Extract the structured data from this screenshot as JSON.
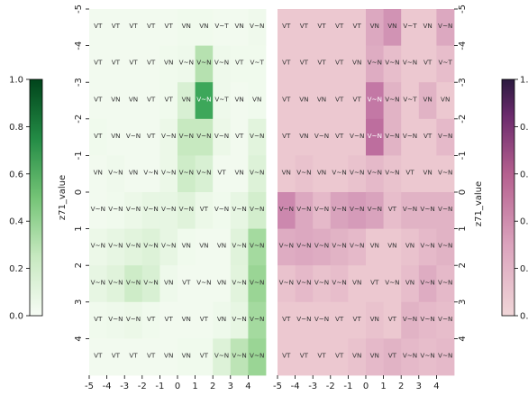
{
  "chart_data": [
    {
      "type": "heatmap",
      "panel": "left",
      "colormap": "Greens",
      "colorbar": {
        "label": "z71_value",
        "ticks": [
          "0.0",
          "0.2",
          "0.4",
          "0.6",
          "0.8",
          "1.0"
        ],
        "range": [
          0,
          1
        ],
        "position": "left"
      },
      "x_ticks": [
        "-5",
        "-4",
        "-3",
        "-2",
        "-1",
        "0",
        "1",
        "2",
        "3",
        "4"
      ],
      "y_ticks": [
        "-5",
        "-4",
        "-3",
        "-2",
        "-1",
        "0",
        "1",
        "2",
        "3",
        "4"
      ],
      "y_axis_side": "left",
      "rows": 10,
      "cols": 10,
      "cell_labels": [
        [
          "VT",
          "VT",
          "VT",
          "VT",
          "VT",
          "VN",
          "VN",
          "V~T",
          "VN",
          "V~N"
        ],
        [
          "VT",
          "VT",
          "VT",
          "VT",
          "VN",
          "V~N",
          "V~N",
          "V~N",
          "VT",
          "V~T"
        ],
        [
          "VT",
          "VN",
          "VN",
          "VT",
          "VT",
          "VN",
          "V~N",
          "V~T",
          "VN",
          "VN"
        ],
        [
          "VT",
          "VN",
          "V~N",
          "VT",
          "V~N",
          "V~N",
          "V~N",
          "V~N",
          "VT",
          "V~N"
        ],
        [
          "VN",
          "V~N",
          "VN",
          "V~N",
          "V~N",
          "V~N",
          "V~N",
          "VT",
          "VN",
          "V~N"
        ],
        [
          "V~N",
          "V~N",
          "V~N",
          "V~N",
          "V~N",
          "V~N",
          "VT",
          "V~N",
          "V~N",
          "V~N"
        ],
        [
          "V~N",
          "V~N",
          "V~N",
          "V~N",
          "V~N",
          "VN",
          "VN",
          "VN",
          "V~N",
          "V~N"
        ],
        [
          "V~N",
          "V~N",
          "V~N",
          "V~N",
          "VN",
          "VT",
          "V~N",
          "VN",
          "V~N",
          "V~N"
        ],
        [
          "VT",
          "V~N",
          "V~N",
          "VT",
          "VT",
          "VN",
          "VT",
          "VN",
          "V~N",
          "V~N"
        ],
        [
          "VT",
          "VT",
          "VT",
          "VT",
          "VN",
          "VN",
          "VT",
          "V~N",
          "V~N",
          "V~N"
        ]
      ],
      "values": [
        [
          0.05,
          0.05,
          0.05,
          0.05,
          0.05,
          0.06,
          0.06,
          0.05,
          0.05,
          0.07
        ],
        [
          0.05,
          0.05,
          0.05,
          0.05,
          0.06,
          0.08,
          0.3,
          0.08,
          0.06,
          0.06
        ],
        [
          0.05,
          0.05,
          0.05,
          0.05,
          0.06,
          0.18,
          0.72,
          0.08,
          0.05,
          0.06
        ],
        [
          0.06,
          0.05,
          0.05,
          0.05,
          0.1,
          0.25,
          0.25,
          0.1,
          0.05,
          0.14
        ],
        [
          0.05,
          0.07,
          0.05,
          0.05,
          0.1,
          0.22,
          0.18,
          0.05,
          0.05,
          0.16
        ],
        [
          0.05,
          0.06,
          0.1,
          0.12,
          0.12,
          0.15,
          0.1,
          0.06,
          0.12,
          0.2
        ],
        [
          0.1,
          0.12,
          0.14,
          0.16,
          0.12,
          0.06,
          0.05,
          0.05,
          0.15,
          0.35
        ],
        [
          0.12,
          0.15,
          0.22,
          0.18,
          0.08,
          0.05,
          0.05,
          0.05,
          0.14,
          0.38
        ],
        [
          0.06,
          0.08,
          0.1,
          0.06,
          0.05,
          0.05,
          0.05,
          0.08,
          0.12,
          0.35
        ],
        [
          0.05,
          0.05,
          0.05,
          0.05,
          0.05,
          0.06,
          0.06,
          0.16,
          0.28,
          0.38
        ]
      ]
    },
    {
      "type": "heatmap",
      "panel": "right",
      "colormap": "PuRd",
      "colorbar": {
        "label": "z71_value",
        "ticks": [
          "0.2",
          "0.2",
          "0.2",
          "0.2",
          "0.2",
          "1."
        ],
        "range": [
          0,
          1
        ],
        "position": "right"
      },
      "x_ticks": [
        "-5",
        "-4",
        "-3",
        "-2",
        "-1",
        "0",
        "1",
        "2",
        "3",
        "4"
      ],
      "y_ticks": [
        "-5",
        "-4",
        "-3",
        "-2",
        "-1",
        "0",
        "1",
        "2",
        "3",
        "4"
      ],
      "y_axis_side": "right",
      "rows": 10,
      "cols": 10,
      "cell_labels": [
        [
          "VT",
          "VT",
          "VT",
          "VT",
          "VT",
          "VN",
          "VN",
          "V~T",
          "VN",
          "V~N"
        ],
        [
          "VT",
          "VT",
          "VT",
          "VT",
          "VN",
          "V~N",
          "V~N",
          "V~N",
          "VT",
          "V~T"
        ],
        [
          "VT",
          "VN",
          "VN",
          "VT",
          "VT",
          "V~N",
          "V~N",
          "V~T",
          "VN",
          "VN"
        ],
        [
          "VT",
          "VN",
          "V~N",
          "VT",
          "V~N",
          "V~N",
          "V~N",
          "V~N",
          "VT",
          "V~N"
        ],
        [
          "VN",
          "V~N",
          "VN",
          "V~N",
          "V~N",
          "V~N",
          "V~N",
          "VT",
          "VN",
          "V~N"
        ],
        [
          "V~N",
          "V~N",
          "V~N",
          "V~N",
          "V~N",
          "V~N",
          "VT",
          "V~N",
          "V~N",
          "V~N"
        ],
        [
          "V~N",
          "V~N",
          "V~N",
          "V~N",
          "V~N",
          "VN",
          "VN",
          "VN",
          "V~N",
          "V~N"
        ],
        [
          "V~N",
          "V~N",
          "V~N",
          "V~N",
          "VN",
          "VT",
          "V~N",
          "VN",
          "V~N",
          "V~N"
        ],
        [
          "VT",
          "V~N",
          "V~N",
          "VT",
          "VT",
          "VN",
          "VT",
          "V~N",
          "V~N",
          "V~N"
        ],
        [
          "VT",
          "VT",
          "VT",
          "VT",
          "VN",
          "VN",
          "VT",
          "V~N",
          "V~N",
          "V~N"
        ]
      ],
      "values": [
        [
          0.15,
          0.15,
          0.15,
          0.15,
          0.15,
          0.3,
          0.38,
          0.15,
          0.15,
          0.3
        ],
        [
          0.15,
          0.15,
          0.15,
          0.15,
          0.15,
          0.28,
          0.2,
          0.15,
          0.15,
          0.2
        ],
        [
          0.15,
          0.15,
          0.15,
          0.15,
          0.15,
          0.48,
          0.25,
          0.15,
          0.25,
          0.15
        ],
        [
          0.15,
          0.15,
          0.15,
          0.15,
          0.15,
          0.52,
          0.25,
          0.15,
          0.15,
          0.22
        ],
        [
          0.15,
          0.18,
          0.15,
          0.15,
          0.18,
          0.22,
          0.18,
          0.15,
          0.15,
          0.15
        ],
        [
          0.42,
          0.3,
          0.22,
          0.32,
          0.35,
          0.32,
          0.2,
          0.25,
          0.25,
          0.25
        ],
        [
          0.28,
          0.3,
          0.28,
          0.25,
          0.22,
          0.15,
          0.15,
          0.18,
          0.22,
          0.25
        ],
        [
          0.18,
          0.22,
          0.18,
          0.2,
          0.15,
          0.15,
          0.15,
          0.2,
          0.28,
          0.22
        ],
        [
          0.15,
          0.15,
          0.15,
          0.15,
          0.15,
          0.18,
          0.15,
          0.25,
          0.22,
          0.2
        ],
        [
          0.15,
          0.15,
          0.15,
          0.15,
          0.18,
          0.22,
          0.25,
          0.22,
          0.2,
          0.22
        ]
      ]
    }
  ]
}
